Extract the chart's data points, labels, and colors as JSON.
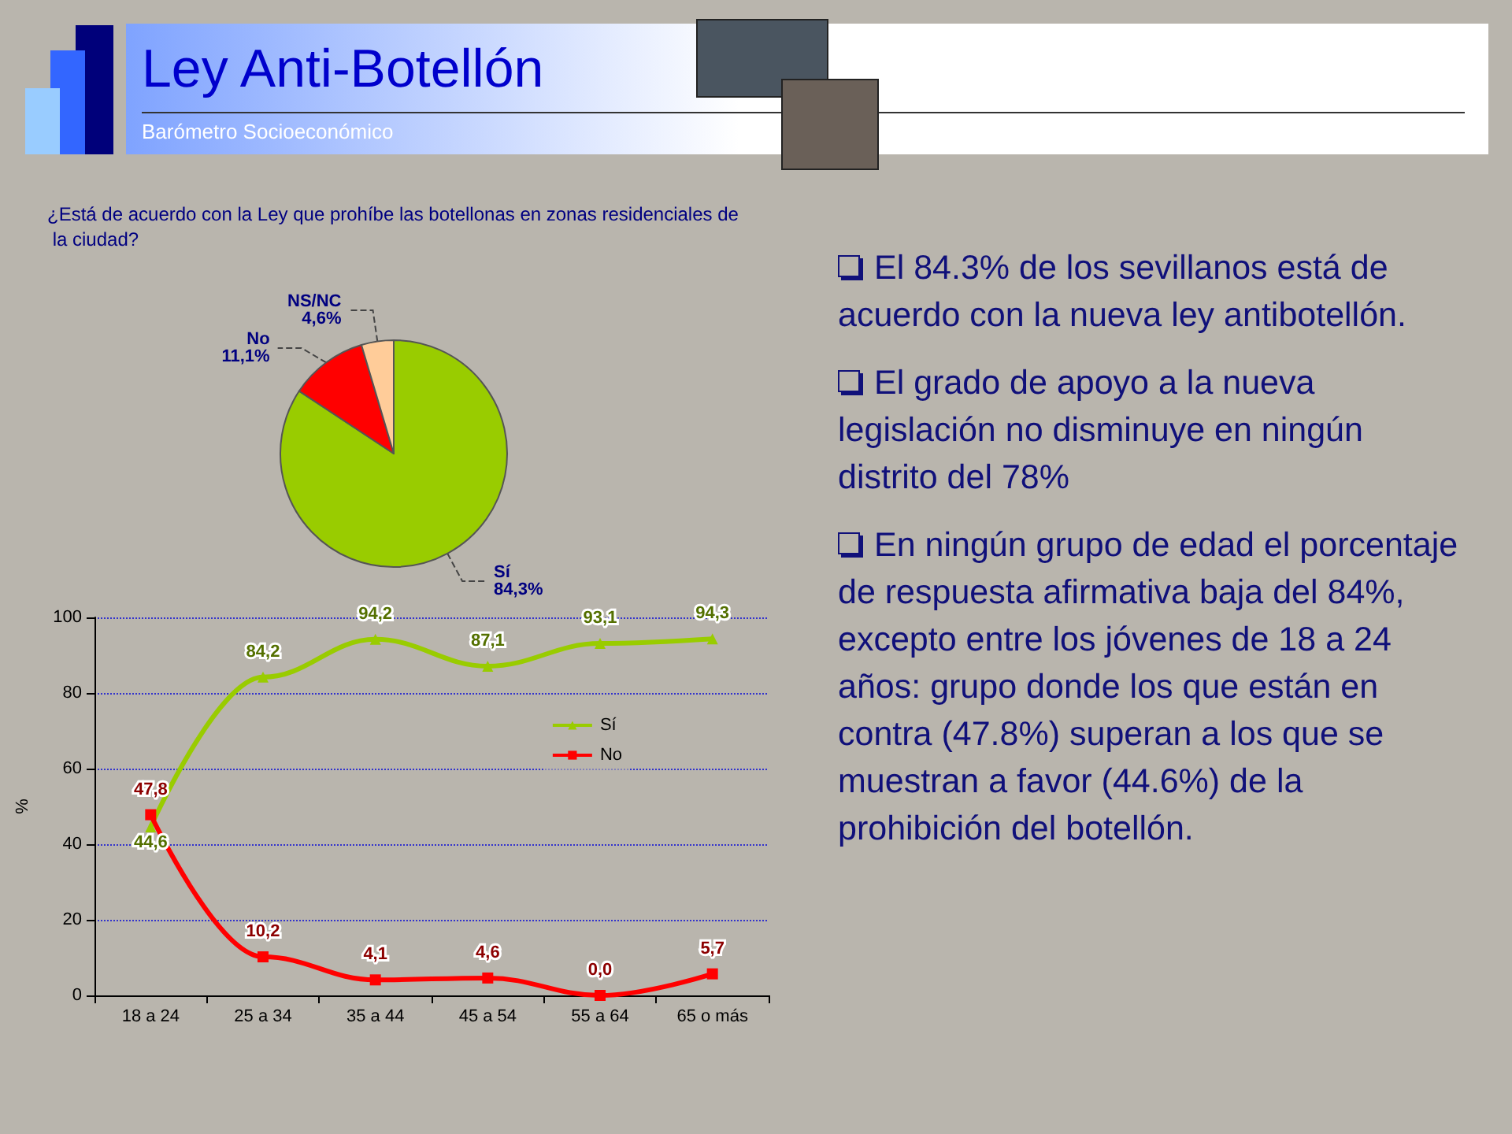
{
  "chart_data": [
    {
      "type": "other",
      "title": "Ley Anti-Botellón",
      "subtitle": "Barómetro Socioeconómico"
    },
    {
      "type": "pie",
      "title": "¿Está de acuerdo con la Ley que prohíbe las botellonas en zonas residenciales de la ciudad?",
      "categories": [
        "Sí",
        "No",
        "NS/NC"
      ],
      "values": [
        84.3,
        11.1,
        4.6
      ],
      "colors": [
        "#99cc00",
        "#ff0000",
        "#ffcc99"
      ],
      "value_labels": [
        "84,3%",
        "11,1%",
        "4,6%"
      ]
    },
    {
      "type": "line",
      "categories": [
        "18 a 24",
        "25 a 34",
        "35 a 44",
        "45 a 54",
        "55 a 64",
        "65 o más"
      ],
      "ylabel": "%",
      "ylim": [
        0,
        100
      ],
      "yticks": [
        0,
        20,
        40,
        60,
        80,
        100
      ],
      "grid": "y",
      "legend": "right",
      "series": [
        {
          "name": "Sí",
          "color": "#99cc00",
          "marker": "triangle",
          "values": [
            44.6,
            84.2,
            94.2,
            87.1,
            93.1,
            94.3
          ],
          "value_labels": [
            "44,6",
            "84,2",
            "94,2",
            "87,1",
            "93,1",
            "94,3"
          ]
        },
        {
          "name": "No",
          "color": "#ff0000",
          "marker": "square",
          "values": [
            47.8,
            10.2,
            4.1,
            4.6,
            0.0,
            5.7
          ],
          "value_labels": [
            "47,8",
            "10,2",
            "4,1",
            "4,6",
            "0,0",
            "5,7"
          ]
        }
      ]
    },
    {
      "type": "other",
      "annotations": [
        "El 84.3% de los sevillanos está de acuerdo con la nueva ley antibotellón.",
        "El grado de apoyo a la nueva legislación no disminuye en ningún distrito del 78%",
        "En ningún grupo de edad el porcentaje de respuesta afirmativa baja del 84%, excepto entre los jóvenes de 18 a 24 años: grupo donde los que están en contra (47.8%) superan a los que se muestran a favor (44.6%) de la prohibición del botellón."
      ]
    }
  ]
}
